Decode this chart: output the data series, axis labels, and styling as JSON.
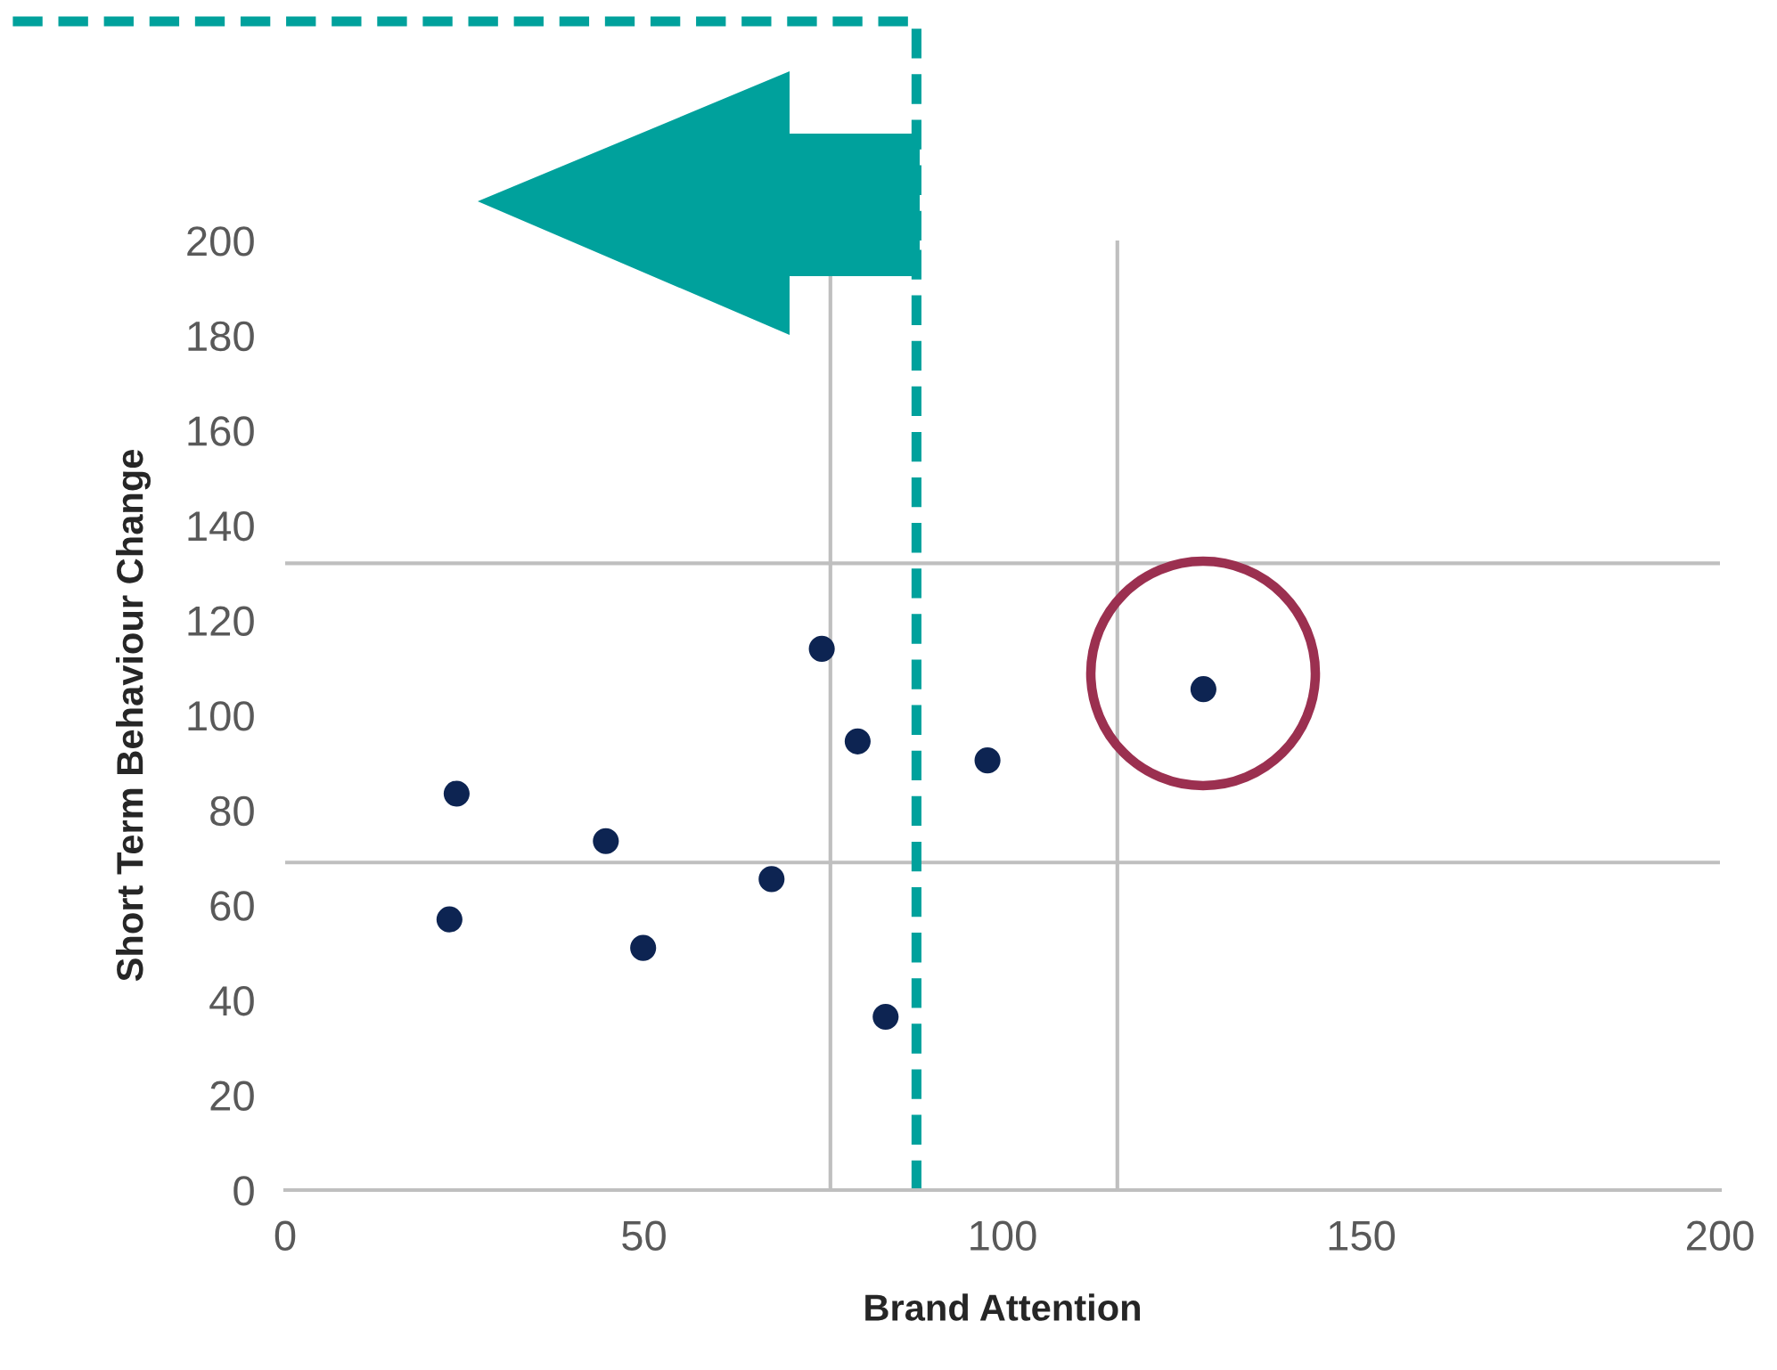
{
  "chart_data": {
    "type": "scatter",
    "xlabel": "Brand Attention",
    "ylabel": "Short Term Behaviour Change",
    "x": [
      22.9,
      23.9,
      44.7,
      49.9,
      67.8,
      74.8,
      79.8,
      83.7,
      97.9,
      128
    ],
    "series": [
      {
        "color": "#0d2452",
        "values": [
          57,
          83.5,
          73.5,
          51,
          65.5,
          114,
          94.5,
          36.5,
          90.5,
          105.5
        ]
      }
    ],
    "marker": "circle",
    "grid": false,
    "xlim": [
      0,
      200
    ],
    "ylim": [
      0,
      200
    ],
    "xticks": [
      0,
      50,
      100,
      150,
      200
    ],
    "yticks": [
      0,
      20,
      40,
      60,
      80,
      100,
      120,
      140,
      160,
      180,
      200
    ],
    "ref_lines": [
      {
        "axis": "x",
        "value": 76,
        "color": "#bfbfbf",
        "line_style": "solid"
      },
      {
        "axis": "x",
        "value": 116,
        "color": "#bfbfbf",
        "line_style": "solid"
      },
      {
        "axis": "y",
        "value": 132,
        "color": "#bfbfbf",
        "line_style": "solid"
      },
      {
        "axis": "y",
        "value": 69,
        "color": "#bfbfbf",
        "line_style": "solid"
      },
      {
        "axis": "x",
        "value": 88,
        "color": "#00a19c",
        "line_style": "dashed"
      }
    ]
  }
}
